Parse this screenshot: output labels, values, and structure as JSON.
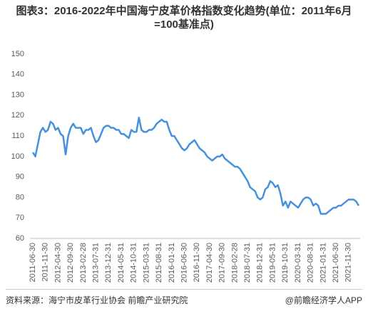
{
  "chart_data": {
    "type": "line",
    "title": "图表3：2016-2022年中国海宁皮革价格指数变化趋势(单位：2011年6月=100基准点)",
    "categories": [
      "2011-06-30",
      null,
      null,
      null,
      null,
      "2011-11-30",
      null,
      null,
      null,
      null,
      "2012-04-30",
      null,
      null,
      null,
      null,
      "2012-09-30",
      null,
      null,
      null,
      null,
      "2013-02-28",
      null,
      null,
      null,
      null,
      "2013-07-31",
      null,
      null,
      null,
      null,
      "2013-12-31",
      null,
      null,
      null,
      null,
      "2014-05-31",
      null,
      null,
      null,
      null,
      "2014-10-31",
      null,
      null,
      null,
      null,
      "2015-03-31",
      null,
      null,
      null,
      null,
      "2015-08-31",
      null,
      null,
      null,
      null,
      "2016-01-31",
      null,
      null,
      null,
      null,
      "2016-06-30",
      null,
      null,
      null,
      null,
      "2016-11-30",
      null,
      null,
      null,
      null,
      "2017-04-30",
      null,
      null,
      null,
      null,
      "2017-09-30",
      null,
      null,
      null,
      null,
      "2018-02-28",
      null,
      null,
      null,
      null,
      "2018-07-31",
      null,
      null,
      null,
      null,
      "2018-12-31",
      null,
      null,
      null,
      null,
      "2019-05-31",
      null,
      null,
      null,
      null,
      "2019-10-31",
      null,
      null,
      null,
      null,
      "2020-03-31",
      null,
      null,
      null,
      null,
      "2020-08-31",
      null,
      null,
      null,
      null,
      "2021-01-31",
      null,
      null,
      null,
      null,
      "2021-06-30",
      null,
      null,
      null,
      null,
      "2021-11-30",
      null,
      null,
      null,
      null
    ],
    "values": [
      102,
      100,
      106,
      112,
      114,
      112,
      113,
      117,
      116,
      113,
      114,
      111,
      110,
      101,
      110,
      114,
      116,
      114,
      114,
      114,
      111,
      113,
      113,
      114,
      110,
      107,
      108,
      111,
      114,
      115,
      115,
      114,
      114,
      113,
      113,
      111,
      111,
      110,
      109,
      113,
      112,
      112,
      119,
      113,
      112,
      112,
      113,
      113,
      114,
      116,
      117,
      118,
      117,
      117,
      113,
      110,
      110,
      108,
      106,
      104,
      103,
      104,
      106,
      107,
      108,
      106,
      104,
      103,
      102,
      100,
      99,
      98,
      99,
      100,
      100,
      101,
      99,
      98,
      97,
      96,
      95,
      95,
      94,
      92,
      90,
      88,
      85,
      84,
      83,
      80,
      79,
      80,
      84,
      85,
      88,
      87,
      85,
      86,
      82,
      76,
      78,
      75,
      78,
      77,
      76,
      75,
      77,
      79,
      80,
      80,
      79,
      76,
      77,
      76,
      72,
      72,
      72,
      73,
      74,
      75,
      75,
      76,
      76,
      77,
      78,
      79,
      79,
      79,
      78,
      76
    ],
    "color": "#4591dc",
    "ylim": [
      60,
      150
    ],
    "yticks": [
      60,
      70,
      80,
      90,
      100,
      110,
      120,
      130,
      140,
      150
    ],
    "grid": false
  },
  "footer": {
    "source": "资料来源：海宁市皮革行业协会 前瞻产业研究院",
    "credit": "@前瞻经济学人APP"
  }
}
